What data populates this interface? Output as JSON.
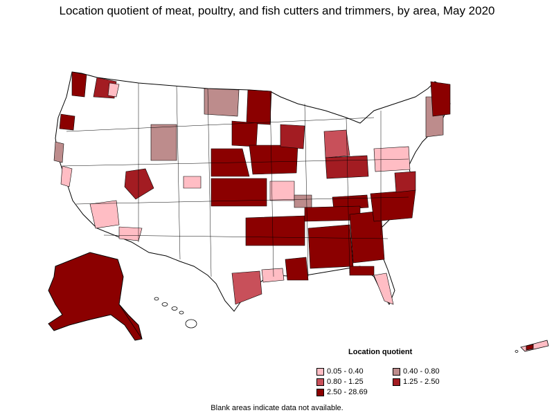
{
  "title": "Location quotient of meat, poultry, and fish cutters and trimmers, by area, May 2020",
  "legend": {
    "title": "Location quotient",
    "items": [
      {
        "label": "0.05 - 0.40",
        "color": "#ffbdc4"
      },
      {
        "label": "0.40 - 0.80",
        "color": "#bd8c8c"
      },
      {
        "label": "0.80 - 1.25",
        "color": "#c8505a"
      },
      {
        "label": "1.25 - 2.50",
        "color": "#a31c22"
      },
      {
        "label": "2.50 - 28.69",
        "color": "#8b0000"
      }
    ]
  },
  "footnote": "Blank areas indicate data not available.",
  "map": {
    "border_color": "#000000",
    "background_fill": "#ffffff"
  }
}
